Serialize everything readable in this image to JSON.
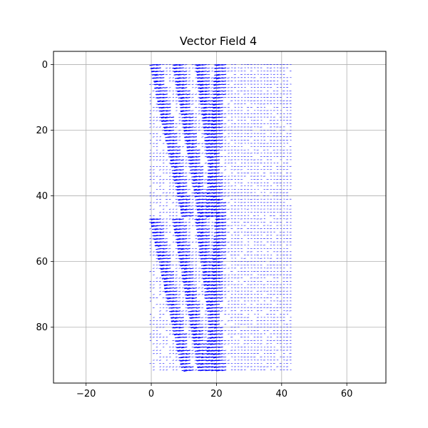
{
  "chart_data": {
    "type": "quiver",
    "title": "Vector Field 4",
    "xlabel": "",
    "ylabel": "",
    "xlim": [
      -30,
      72
    ],
    "ylim": [
      97,
      -4
    ],
    "y_axis_inverted": true,
    "x_ticks": [
      -20,
      0,
      20,
      40,
      60
    ],
    "y_ticks": [
      0,
      20,
      40,
      60,
      80
    ],
    "x_tick_labels": [
      "−20",
      "0",
      "20",
      "40",
      "60"
    ],
    "y_tick_labels": [
      "0",
      "20",
      "40",
      "60",
      "80"
    ],
    "grid": true,
    "arrow_color": "#0000ff",
    "grid_color": "#b0b0b0",
    "field": {
      "x_range": [
        0,
        43
      ],
      "y_range": [
        0,
        93
      ],
      "x_step": 1,
      "y_step": 1,
      "description_of_pattern": "mostly small arrows with dense diagonal bands of longer left-pointing arrows near x 0-25; sparse short arrows for x 22-43"
    }
  }
}
